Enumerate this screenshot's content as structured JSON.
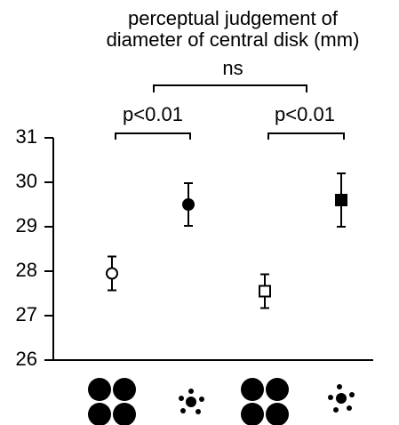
{
  "chart_data": {
    "type": "errorbar",
    "title": [
      "perceptual judgement of",
      "diameter of central disk (mm)"
    ],
    "annotations": [
      "ns",
      "p<0.01",
      "p<0.01"
    ],
    "categories": [
      null,
      null,
      null,
      null
    ],
    "values": [
      27.95,
      29.5,
      27.55,
      29.6
    ],
    "errors": [
      0.38,
      0.48,
      0.38,
      0.6
    ],
    "markers": [
      "circle-open",
      "circle",
      "square-open",
      "square"
    ],
    "color": "#000000",
    "ylim": [
      26,
      31
    ],
    "yticks": [
      26,
      27,
      28,
      29,
      30,
      31
    ]
  }
}
